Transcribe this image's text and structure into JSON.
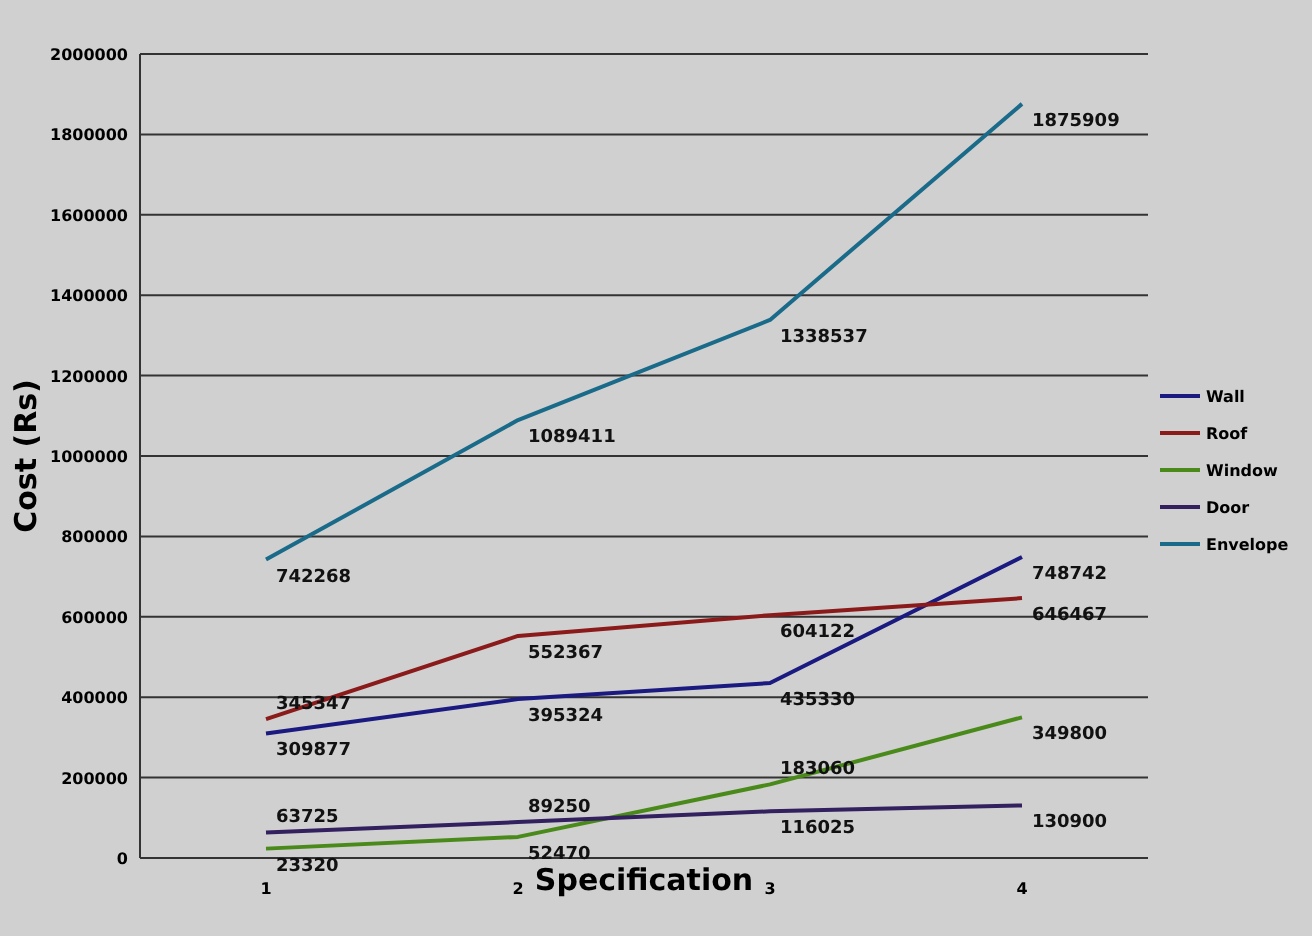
{
  "chart_data": {
    "type": "line",
    "xlabel": "Specification",
    "ylabel": "Cost  (Rs)",
    "categories": [
      "1",
      "2",
      "3",
      "4"
    ],
    "series": [
      {
        "name": "Wall",
        "color": "#1a1a80",
        "values": [
          309877,
          395324,
          435330,
          748742
        ]
      },
      {
        "name": "Roof",
        "color": "#8b1a1a",
        "values": [
          345347,
          552367,
          604122,
          646467
        ]
      },
      {
        "name": "Window",
        "color": "#4a8a1a",
        "values": [
          23320,
          52470,
          183060,
          349800
        ]
      },
      {
        "name": "Door",
        "color": "#33205f",
        "values": [
          63725,
          89250,
          116025,
          130900
        ]
      },
      {
        "name": "Envelope",
        "color": "#1a6a8a",
        "values": [
          742268,
          1089411,
          1338537,
          1875909
        ]
      }
    ],
    "ylim": [
      0,
      2000000
    ],
    "yticks": [
      0,
      200000,
      400000,
      600000,
      800000,
      1000000,
      1200000,
      1400000,
      1600000,
      1800000,
      2000000
    ],
    "grid": "y",
    "legend": "right",
    "data_labels": true,
    "marker": "none",
    "line_style": "solid"
  }
}
